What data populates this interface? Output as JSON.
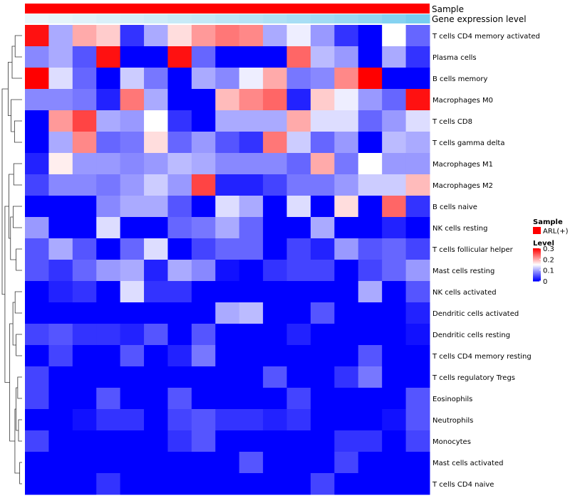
{
  "chart_data": {
    "type": "heatmap",
    "title": "",
    "annotations": {
      "sample_label": "Sample",
      "gene_label": "Gene expression level",
      "sample_color": "#ff0000",
      "gene_color_low": "#eef7fb",
      "gene_color_high": "#62c5ee"
    },
    "legend": {
      "position": "right",
      "sample_title": "Sample",
      "sample_item": "ARL(+)",
      "sample_color": "#ff0000",
      "level_title": "Level",
      "level_ticks": [
        {
          "value": 0.3,
          "label": "0.3"
        },
        {
          "value": 0.2,
          "label": "0.2"
        },
        {
          "value": 0.1,
          "label": "0.1"
        },
        {
          "value": 0.0,
          "label": "0"
        }
      ]
    },
    "color_scale": {
      "min": 0,
      "mid": 0.15,
      "max": 0.3,
      "low": "#0000ff",
      "mid_color": "#ffffff",
      "high": "#ff0000"
    },
    "columns": 17,
    "rows": [
      "T cells CD4 memory activated",
      "Plasma cells",
      "B cells memory",
      "Macrophages M0",
      "T cells CD8",
      "T cells gamma delta",
      "Macrophages M1",
      "Macrophages M2",
      "B cells naive",
      "NK cells resting",
      "T cells follicular helper",
      "Mast cells resting",
      "NK cells activated",
      "Dendritic cells activated",
      "Dendritic cells resting",
      "T cells CD4 memory resting",
      "T cells regulatory  Tregs",
      "Eosinophils",
      "Neutrophils",
      "Monocytes",
      "Mast cells activated",
      "T cells CD4 naive"
    ],
    "values": [
      [
        0.29,
        0.1,
        0.2,
        0.18,
        0.03,
        0.1,
        0.17,
        0.21,
        0.23,
        0.22,
        0.1,
        0.14,
        0.09,
        0.03,
        0.0,
        0.15,
        0.06
      ],
      [
        0.08,
        0.1,
        0.05,
        0.29,
        0.0,
        0.0,
        0.29,
        0.06,
        0.0,
        0.0,
        0.0,
        0.24,
        0.11,
        0.09,
        0.0,
        0.1,
        0.03
      ],
      [
        0.3,
        0.13,
        0.06,
        0.0,
        0.12,
        0.07,
        0.0,
        0.1,
        0.08,
        0.14,
        0.2,
        0.07,
        0.08,
        0.22,
        0.3,
        0.0,
        0.0
      ],
      [
        0.08,
        0.08,
        0.07,
        0.02,
        0.23,
        0.1,
        0.0,
        0.0,
        0.19,
        0.22,
        0.24,
        0.02,
        0.18,
        0.14,
        0.09,
        0.06,
        0.29
      ],
      [
        0.0,
        0.21,
        0.26,
        0.1,
        0.09,
        0.15,
        0.03,
        0.0,
        0.1,
        0.1,
        0.1,
        0.2,
        0.13,
        0.13,
        0.06,
        0.09,
        0.13
      ],
      [
        0.0,
        0.1,
        0.22,
        0.06,
        0.07,
        0.17,
        0.06,
        0.09,
        0.05,
        0.03,
        0.23,
        0.12,
        0.06,
        0.09,
        0.0,
        0.11,
        0.1
      ],
      [
        0.02,
        0.16,
        0.09,
        0.09,
        0.08,
        0.09,
        0.11,
        0.1,
        0.08,
        0.08,
        0.08,
        0.06,
        0.2,
        0.07,
        0.15,
        0.09,
        0.09
      ],
      [
        0.04,
        0.08,
        0.08,
        0.07,
        0.09,
        0.12,
        0.09,
        0.26,
        0.02,
        0.02,
        0.04,
        0.07,
        0.07,
        0.09,
        0.12,
        0.12,
        0.19
      ],
      [
        0.0,
        0.0,
        0.0,
        0.08,
        0.1,
        0.1,
        0.05,
        0.0,
        0.13,
        0.1,
        0.0,
        0.13,
        0.0,
        0.17,
        0.0,
        0.24,
        0.03
      ],
      [
        0.09,
        0.0,
        0.0,
        0.13,
        0.0,
        0.0,
        0.06,
        0.07,
        0.1,
        0.06,
        0.0,
        0.0,
        0.1,
        0.0,
        0.0,
        0.02,
        0.0
      ],
      [
        0.05,
        0.1,
        0.05,
        0.0,
        0.06,
        0.13,
        0.0,
        0.04,
        0.06,
        0.06,
        0.0,
        0.04,
        0.02,
        0.09,
        0.05,
        0.06,
        0.04
      ],
      [
        0.05,
        0.03,
        0.06,
        0.09,
        0.1,
        0.02,
        0.1,
        0.08,
        0.01,
        0.0,
        0.03,
        0.04,
        0.04,
        0.0,
        0.04,
        0.06,
        0.09
      ],
      [
        0.0,
        0.02,
        0.03,
        0.0,
        0.13,
        0.03,
        0.03,
        0.0,
        0.0,
        0.0,
        0.0,
        0.0,
        0.0,
        0.0,
        0.1,
        0.0,
        0.05
      ],
      [
        0.0,
        0.0,
        0.0,
        0.0,
        0.0,
        0.0,
        0.0,
        0.0,
        0.1,
        0.11,
        0.0,
        0.0,
        0.05,
        0.0,
        0.0,
        0.0,
        0.02
      ],
      [
        0.04,
        0.05,
        0.03,
        0.03,
        0.02,
        0.05,
        0.0,
        0.05,
        0.0,
        0.0,
        0.0,
        0.02,
        0.0,
        0.0,
        0.0,
        0.0,
        0.01
      ],
      [
        0.0,
        0.04,
        0.0,
        0.0,
        0.05,
        0.0,
        0.02,
        0.07,
        0.0,
        0.0,
        0.0,
        0.0,
        0.0,
        0.0,
        0.05,
        0.0,
        0.0
      ],
      [
        0.04,
        0.0,
        0.0,
        0.0,
        0.0,
        0.0,
        0.0,
        0.0,
        0.0,
        0.0,
        0.05,
        0.0,
        0.0,
        0.03,
        0.07,
        0.0,
        0.0
      ],
      [
        0.04,
        0.0,
        0.0,
        0.05,
        0.0,
        0.0,
        0.05,
        0.0,
        0.0,
        0.0,
        0.0,
        0.04,
        0.0,
        0.0,
        0.0,
        0.0,
        0.05
      ],
      [
        0.0,
        0.0,
        0.01,
        0.03,
        0.03,
        0.0,
        0.04,
        0.05,
        0.03,
        0.03,
        0.02,
        0.03,
        0.0,
        0.0,
        0.0,
        0.01,
        0.05
      ],
      [
        0.04,
        0.0,
        0.0,
        0.0,
        0.0,
        0.0,
        0.03,
        0.05,
        0.0,
        0.0,
        0.0,
        0.0,
        0.0,
        0.03,
        0.03,
        0.0,
        0.04
      ],
      [
        0.0,
        0.0,
        0.0,
        0.0,
        0.0,
        0.0,
        0.0,
        0.0,
        0.0,
        0.05,
        0.0,
        0.0,
        0.0,
        0.04,
        0.0,
        0.0,
        0.0
      ],
      [
        0.0,
        0.0,
        0.0,
        0.03,
        0.0,
        0.0,
        0.0,
        0.0,
        0.0,
        0.0,
        0.0,
        0.0,
        0.04,
        0.0,
        0.0,
        0.0,
        0.0
      ]
    ],
    "gene_expression": [
      0.02,
      0.06,
      0.1,
      0.14,
      0.18,
      0.22,
      0.27,
      0.31,
      0.36,
      0.4,
      0.45,
      0.5,
      0.55,
      0.6,
      0.66,
      0.75,
      0.85
    ],
    "row_dendrogram": [
      {
        "id": "a",
        "children": [
          0,
          1
        ],
        "height": 0.35
      },
      {
        "id": "b",
        "children": [
          "a",
          2
        ],
        "height": 0.5
      },
      {
        "id": "c",
        "children": [
          4,
          5
        ],
        "height": 0.38
      },
      {
        "id": "d",
        "children": [
          3,
          "c"
        ],
        "height": 0.55
      },
      {
        "id": "e",
        "children": [
          "b",
          "d"
        ],
        "height": 0.7
      },
      {
        "id": "f",
        "children": [
          6,
          7
        ],
        "height": 0.42
      },
      {
        "id": "g",
        "children": [
          8,
          9
        ],
        "height": 0.45
      },
      {
        "id": "h",
        "children": [
          10,
          11
        ],
        "height": 0.3
      },
      {
        "id": "i",
        "children": [
          "g",
          "h"
        ],
        "height": 0.58
      },
      {
        "id": "j",
        "children": [
          "f",
          "i"
        ],
        "height": 0.66
      },
      {
        "id": "k",
        "children": [
          12,
          13
        ],
        "height": 0.35
      },
      {
        "id": "l",
        "children": [
          14,
          15
        ],
        "height": 0.3
      },
      {
        "id": "m",
        "children": [
          "k",
          "l"
        ],
        "height": 0.46
      },
      {
        "id": "n",
        "children": [
          16,
          17
        ],
        "height": 0.22
      },
      {
        "id": "o",
        "children": [
          18,
          19
        ],
        "height": 0.18
      },
      {
        "id": "p",
        "children": [
          "n",
          "o"
        ],
        "height": 0.3
      },
      {
        "id": "q",
        "children": [
          20,
          21
        ],
        "height": 0.12
      },
      {
        "id": "r",
        "children": [
          "p",
          "q"
        ],
        "height": 0.36
      },
      {
        "id": "s",
        "children": [
          "m",
          "r"
        ],
        "height": 0.62
      },
      {
        "id": "t",
        "children": [
          "j",
          "s"
        ],
        "height": 0.86
      },
      {
        "id": "u",
        "children": [
          "e",
          "t"
        ],
        "height": 1.0
      }
    ]
  }
}
